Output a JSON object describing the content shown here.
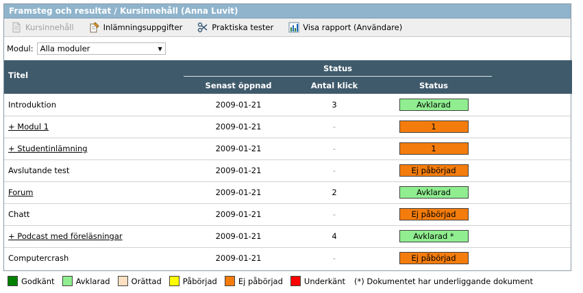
{
  "header": {
    "title": "Framsteg och resultat / Kursinnehåll (Anna Luvit)"
  },
  "toolbar": {
    "items": [
      {
        "label": "Kursinnehåll",
        "icon": "document-icon",
        "disabled": true
      },
      {
        "label": "Inlämningsuppgifter",
        "icon": "assignment-icon",
        "disabled": false
      },
      {
        "label": "Praktiska tester",
        "icon": "scissors-icon",
        "disabled": false
      },
      {
        "label": "Visa rapport (Användare)",
        "icon": "chart-icon",
        "disabled": false
      }
    ]
  },
  "filter": {
    "label": "Modul:",
    "selected": "Alla moduler"
  },
  "table": {
    "group_header": "Status",
    "columns": {
      "title": "Titel",
      "last_opened": "Senast öppnad",
      "clicks": "Antal klick",
      "status": "Status"
    },
    "rows": [
      {
        "title": "Introduktion",
        "link": false,
        "date": "2009-01-21",
        "clicks": "3",
        "status": "Avklarad",
        "status_color": "#90ee90"
      },
      {
        "title": "+ Modul 1",
        "link": true,
        "date": "2009-01-21",
        "clicks": "-",
        "status": "1",
        "status_color": "#f47c0c"
      },
      {
        "title": "+ Studentinlämning",
        "link": true,
        "date": "2009-01-21",
        "clicks": "-",
        "status": "1",
        "status_color": "#f47c0c"
      },
      {
        "title": "Avslutande test",
        "link": false,
        "date": "2009-01-21",
        "clicks": "-",
        "status": "Ej påbörjad",
        "status_color": "#f47c0c"
      },
      {
        "title": "Forum",
        "link": true,
        "date": "2009-01-21",
        "clicks": "2",
        "status": "Avklarad",
        "status_color": "#90ee90"
      },
      {
        "title": "Chatt",
        "link": false,
        "date": "2009-01-21",
        "clicks": "-",
        "status": "Ej påbörjad",
        "status_color": "#f47c0c"
      },
      {
        "title": "+ Podcast med föreläsningar",
        "link": true,
        "date": "2009-01-21",
        "clicks": "4",
        "status": "Avklarad *",
        "status_color": "#90ee90"
      },
      {
        "title": "Computercrash",
        "link": false,
        "date": "2009-01-21",
        "clicks": "-",
        "status": "Ej påbörjad",
        "status_color": "#f47c0c"
      }
    ]
  },
  "legend": {
    "items": [
      {
        "label": "Godkänt",
        "color": "#008000"
      },
      {
        "label": "Avklarad",
        "color": "#90ee90"
      },
      {
        "label": "Orättad",
        "color": "#fde0c2"
      },
      {
        "label": "Påbörjad",
        "color": "#ffff00"
      },
      {
        "label": "Ej påbörjad",
        "color": "#f47c0c"
      },
      {
        "label": "Underkänt",
        "color": "#ff0000"
      }
    ],
    "note": "(*)  Dokumentet har underliggande dokument"
  }
}
